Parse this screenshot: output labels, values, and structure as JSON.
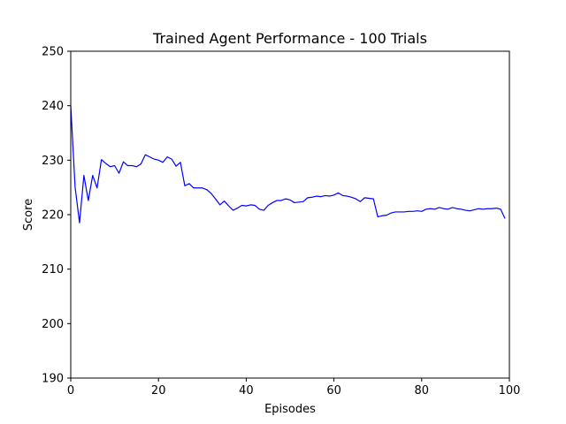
{
  "chart_data": {
    "type": "line",
    "title": "Trained Agent Performance - 100 Trials",
    "xlabel": "Episodes",
    "ylabel": "Score",
    "xlim": [
      0,
      100
    ],
    "ylim": [
      190,
      250
    ],
    "xticks": [
      "0",
      "20",
      "40",
      "60",
      "80",
      "100"
    ],
    "yticks": [
      "190",
      "200",
      "210",
      "220",
      "230",
      "240",
      "250"
    ],
    "grid": false,
    "line_color": "#0000ff",
    "series": [
      {
        "x": [
          0,
          1,
          2,
          3,
          4,
          5,
          6,
          7,
          8,
          9,
          10,
          11,
          12,
          13,
          14,
          15,
          16,
          17,
          18,
          19,
          20,
          21,
          22,
          23,
          24,
          25,
          26,
          27,
          28,
          29,
          30,
          31,
          32,
          33,
          34,
          35,
          36,
          37,
          38,
          39,
          40,
          41,
          42,
          43,
          44,
          45,
          46,
          47,
          48,
          49,
          50,
          51,
          52,
          53,
          54,
          55,
          56,
          57,
          58,
          59,
          60,
          61,
          62,
          63,
          64,
          65,
          66,
          67,
          68,
          69,
          70,
          71,
          72,
          73,
          74,
          75,
          76,
          77,
          78,
          79,
          80,
          81,
          82,
          83,
          84,
          85,
          86,
          87,
          88,
          89,
          90,
          91,
          92,
          93,
          94,
          95,
          96,
          97,
          98,
          99
        ],
        "values": [
          240.0,
          225.0,
          218.5,
          227.2,
          222.6,
          227.2,
          224.9,
          230.1,
          229.4,
          228.8,
          229.0,
          227.6,
          229.7,
          229.0,
          229.0,
          228.8,
          229.3,
          231.0,
          230.6,
          230.2,
          230.0,
          229.6,
          230.6,
          230.2,
          228.9,
          229.6,
          225.3,
          225.7,
          224.9,
          224.9,
          224.9,
          224.6,
          223.9,
          222.9,
          221.8,
          222.5,
          221.6,
          220.8,
          221.2,
          221.7,
          221.6,
          221.8,
          221.7,
          221.0,
          220.8,
          221.7,
          222.2,
          222.6,
          222.6,
          222.9,
          222.7,
          222.2,
          222.3,
          222.4,
          223.1,
          223.2,
          223.4,
          223.3,
          223.5,
          223.4,
          223.6,
          224.0,
          223.5,
          223.4,
          223.2,
          222.9,
          222.4,
          223.1,
          223.0,
          222.9,
          219.6,
          219.8,
          219.9,
          220.3,
          220.5,
          220.5,
          220.5,
          220.6,
          220.6,
          220.7,
          220.6,
          221.0,
          221.1,
          221.0,
          221.3,
          221.1,
          221.0,
          221.3,
          221.1,
          221.0,
          220.8,
          220.7,
          220.9,
          221.1,
          221.0,
          221.1,
          221.1,
          221.2,
          221.0,
          219.3
        ]
      }
    ]
  }
}
